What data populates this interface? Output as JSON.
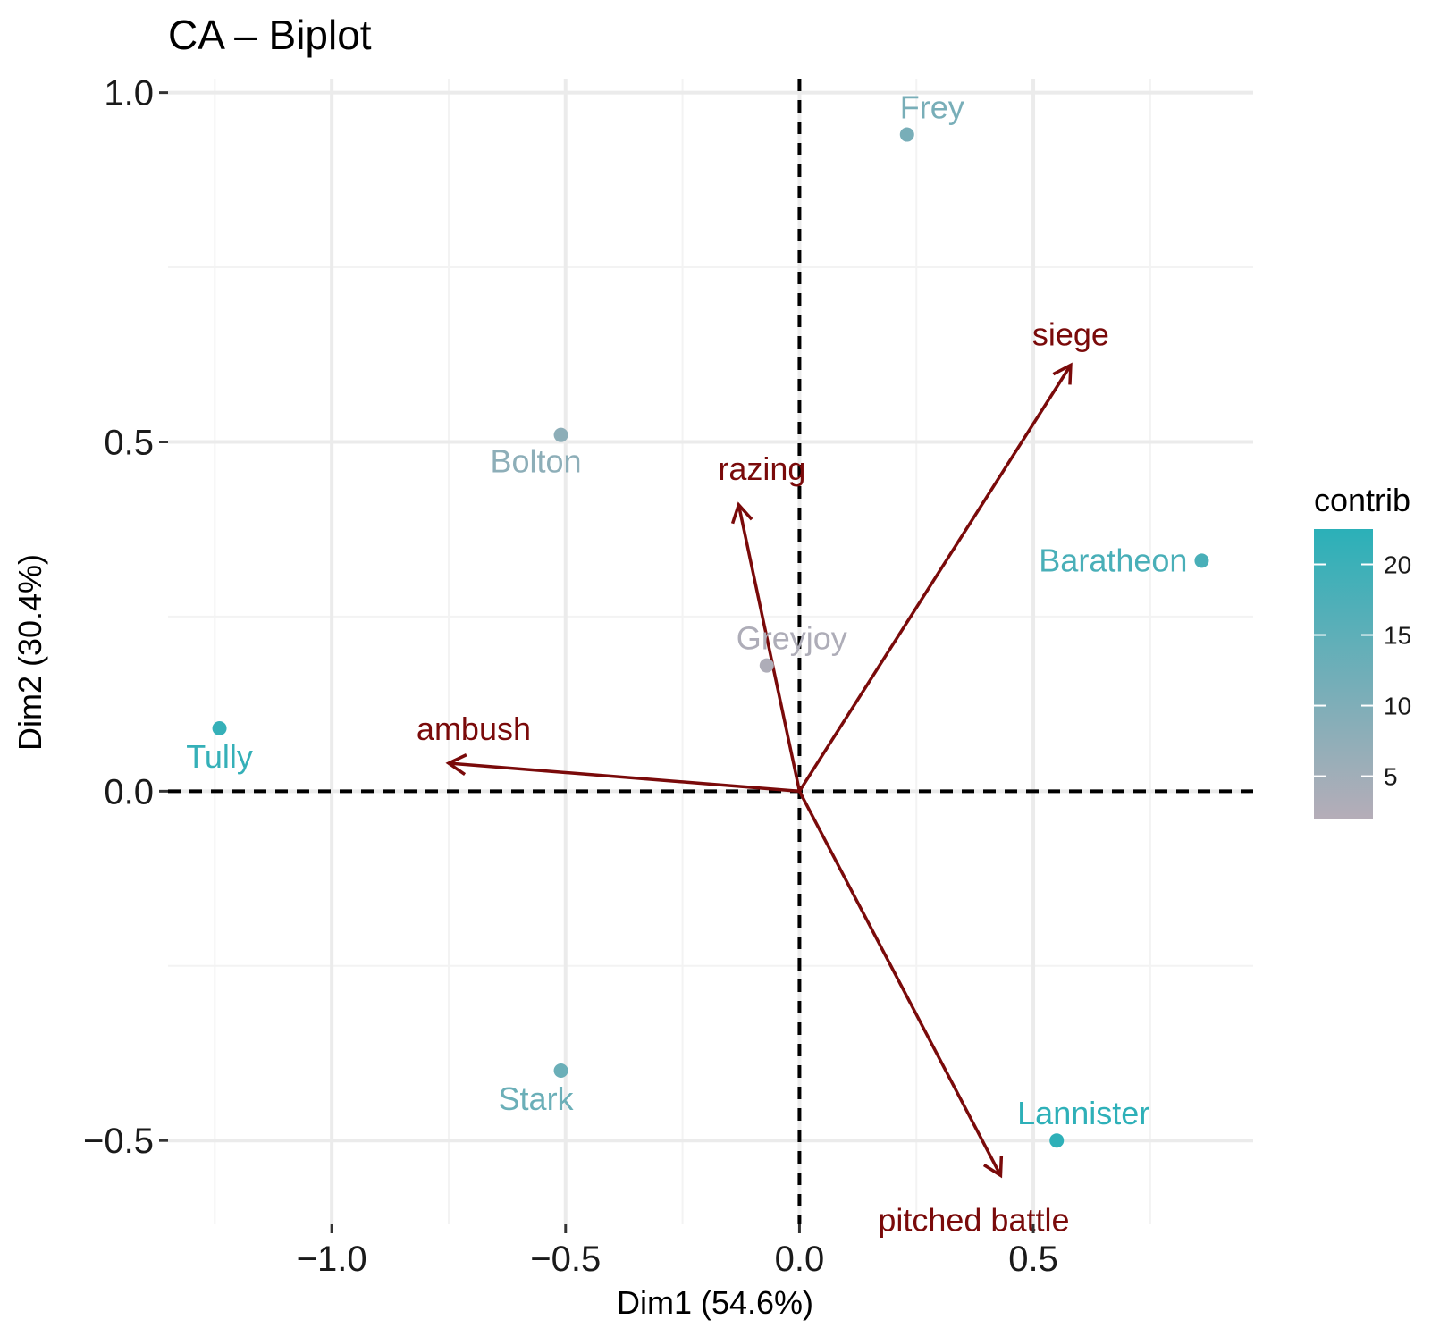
{
  "chart_data": {
    "type": "scatter",
    "title": "CA – Biplot",
    "xlabel": "Dim1 (54.6%)",
    "ylabel": "Dim2 (30.4%)",
    "xlim": [
      -1.35,
      0.97
    ],
    "ylim": [
      -0.62,
      1.02
    ],
    "x_ticks": [
      -1.0,
      -0.5,
      0.0,
      0.5
    ],
    "x_tick_labels": [
      "−1.0",
      "−0.5",
      "0.0",
      "0.5"
    ],
    "y_ticks": [
      -0.5,
      0.0,
      0.5,
      1.0
    ],
    "y_tick_labels": [
      "−0.5",
      "0.0",
      "0.5",
      "1.0"
    ],
    "grid": true,
    "reference_lines": "dashed at x=0 and y=0",
    "row_points": [
      {
        "label": "Frey",
        "x": 0.23,
        "y": 0.94,
        "contrib": 11
      },
      {
        "label": "Bolton",
        "x": -0.51,
        "y": 0.51,
        "contrib": 8
      },
      {
        "label": "Baratheon",
        "x": 0.86,
        "y": 0.33,
        "contrib": 18
      },
      {
        "label": "Greyjoy",
        "x": -0.07,
        "y": 0.18,
        "contrib": 3
      },
      {
        "label": "Tully",
        "x": -1.24,
        "y": 0.09,
        "contrib": 21
      },
      {
        "label": "Stark",
        "x": -0.51,
        "y": -0.4,
        "contrib": 13
      },
      {
        "label": "Lannister",
        "x": 0.55,
        "y": -0.5,
        "contrib": 22
      }
    ],
    "column_arrows": [
      {
        "label": "siege",
        "x": 0.58,
        "y": 0.61
      },
      {
        "label": "razing",
        "x": -0.13,
        "y": 0.41
      },
      {
        "label": "ambush",
        "x": -0.75,
        "y": 0.04
      },
      {
        "label": "pitched battle",
        "x": 0.43,
        "y": -0.55
      }
    ],
    "legend": {
      "title": "contrib",
      "position": "right",
      "ticks": [
        5,
        10,
        15,
        20
      ],
      "range": [
        2,
        22.5
      ],
      "color_low": "#b5adb8",
      "color_high": "#2bb0b8"
    },
    "colors": {
      "arrow": "#7a0a0a",
      "grid_major": "#ebebeb",
      "grid_minor": "#f3f3f3"
    }
  }
}
